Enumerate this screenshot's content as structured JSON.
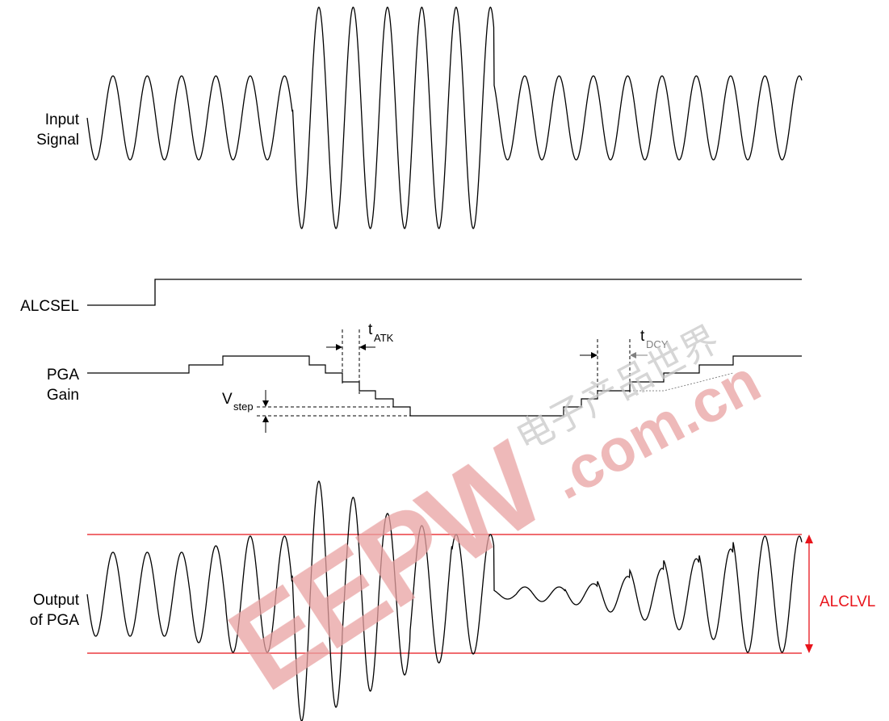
{
  "labels": {
    "input_line1": "Input",
    "input_line2": "Signal",
    "alcsel": "ALCSEL",
    "pga_line1": "PGA",
    "pga_line2": "Gain",
    "output_line1": "Output",
    "output_line2": "of PGA",
    "vstep_main": "V",
    "vstep_sub": "step",
    "tatk_main": "t",
    "tatk_sub": "ATK",
    "tdcy_main": "t",
    "tdcy_sub": "DCY",
    "alclvl": "ALCLVL"
  },
  "watermark": {
    "brand": "EEPW",
    "domain": ".com.cn",
    "chinese": "电子产品世界"
  },
  "colors": {
    "trace": "#000000",
    "limit": "#e8141b",
    "watermark": "#e8a2a2",
    "watermark_cn": "#c8c8c8",
    "annotation_gray": "#808080"
  }
}
